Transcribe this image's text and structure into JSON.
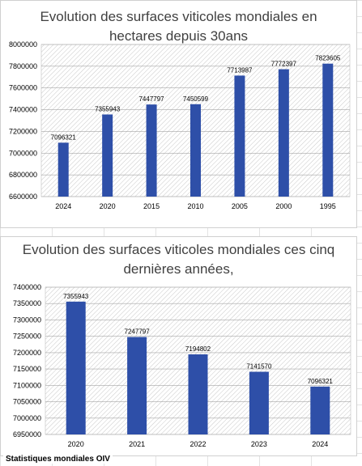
{
  "chart_data": [
    {
      "type": "bar",
      "title": "Evolution des surfaces viticoles mondiales  en hectares depuis 30ans",
      "title_lines": [
        "Evolution des surfaces viticoles mondiales  en",
        "hectares depuis 30ans"
      ],
      "categories": [
        "2024",
        "2020",
        "2015",
        "2010",
        "2005",
        "2000",
        "1995"
      ],
      "values": [
        7096321,
        7355943,
        7447797,
        7450599,
        7713987,
        7772397,
        7823605
      ],
      "value_labels": [
        "7096321",
        "7355943",
        "7447797",
        "7450599",
        "7713987",
        "7772397",
        "7823605"
      ],
      "xlabel": "",
      "ylabel": "",
      "ylim": [
        6600000,
        8000000
      ],
      "yticks": [
        "6600000",
        "6800000",
        "7000000",
        "7200000",
        "7400000",
        "7600000",
        "7800000",
        "8000000"
      ],
      "bar_color": "#2e4fa8",
      "plot_pattern": "diagonal-hatch",
      "legend": "none"
    },
    {
      "type": "bar",
      "title": "Evolution des surfaces viticoles mondiales ces cinq dernières années,",
      "title_lines": [
        "Evolution des surfaces viticoles mondiales ces cinq",
        "dernières années,"
      ],
      "categories": [
        "2020",
        "2021",
        "2022",
        "2023",
        "2024"
      ],
      "values": [
        7355943,
        7247797,
        7194802,
        7141570,
        7096321
      ],
      "value_labels": [
        "7355943",
        "7247797",
        "7194802",
        "7141570",
        "7096321"
      ],
      "xlabel": "",
      "ylabel": "",
      "ylim": [
        6950000,
        7400000
      ],
      "yticks": [
        "6950000",
        "7000000",
        "7050000",
        "7100000",
        "7150000",
        "7200000",
        "7250000",
        "7300000",
        "7350000",
        "7400000"
      ],
      "bar_color": "#2e4fa8",
      "plot_pattern": "diagonal-hatch",
      "legend": "none"
    }
  ],
  "footer": "Statistiques mondiales OIV"
}
